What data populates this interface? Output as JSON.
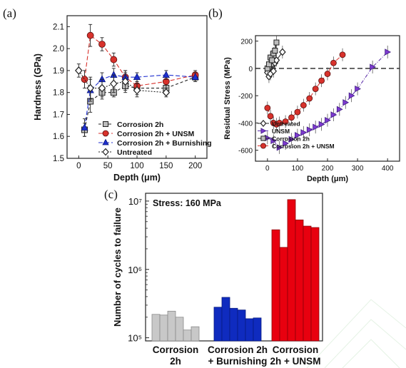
{
  "colors": {
    "red": "#d8322c",
    "blue": "#1f2fcf",
    "violet": "#7e3ad0",
    "gray": "#9a9a9a",
    "dark": "#222222",
    "bar_gray": "#c8c8c8",
    "bar_blue": "#0f2bbf",
    "bar_red": "#e8000f"
  },
  "chart_data": [
    {
      "panel": "(a)",
      "type": "line",
      "xlabel": "Depth (μm)",
      "ylabel": "Hardness (GPa)",
      "xlim": [
        -20,
        220
      ],
      "ylim": [
        1.5,
        2.15
      ],
      "xticks": [
        "0",
        "50",
        "100",
        "150",
        "200"
      ],
      "xtick_values": [
        0,
        50,
        100,
        150,
        200
      ],
      "yticks": [
        "1.5",
        "1.6",
        "1.7",
        "1.8",
        "1.9",
        "2.0",
        "2.1"
      ],
      "ytick_values": [
        1.5,
        1.6,
        1.7,
        1.8,
        1.9,
        2.0,
        2.1
      ],
      "legend_position": "bottom-right",
      "series": [
        {
          "name": "Corrosion 2h",
          "marker": "square",
          "fill": "#bdbdbd",
          "color": "#222222",
          "dash": "4,3",
          "x": [
            10,
            20,
            40,
            60,
            80,
            100,
            150,
            200
          ],
          "y": [
            1.63,
            1.76,
            1.8,
            1.8,
            1.83,
            1.82,
            1.82,
            1.87
          ],
          "err": [
            0.03,
            0.05,
            0.03,
            0.02,
            0.03,
            0.03,
            0.03,
            0.02
          ]
        },
        {
          "name": "Corrosion 2h + UNSM",
          "marker": "circle",
          "fill": "#d8322c",
          "color": "#d8322c",
          "dash": "6,3",
          "x": [
            10,
            20,
            40,
            60,
            80,
            100,
            150,
            200
          ],
          "y": [
            1.86,
            2.06,
            2.02,
            1.95,
            1.87,
            1.83,
            1.85,
            1.88
          ],
          "err": [
            0.04,
            0.05,
            0.03,
            0.03,
            0.03,
            0.03,
            0.03,
            0.02
          ]
        },
        {
          "name": "Corrosion 2h + Burnishing",
          "marker": "triangle",
          "fill": "#1f2fcf",
          "color": "#1f2fcf",
          "dash": "6,3",
          "x": [
            10,
            20,
            40,
            60,
            80,
            100,
            150,
            200
          ],
          "y": [
            1.64,
            1.81,
            1.86,
            1.88,
            1.87,
            1.87,
            1.88,
            1.87
          ],
          "err": [
            0.04,
            0.05,
            0.03,
            0.03,
            0.03,
            0.02,
            0.02,
            0.02
          ]
        },
        {
          "name": "Untreated",
          "marker": "diamond",
          "fill": "#ffffff",
          "color": "#222222",
          "dash": "2,2",
          "x": [
            0,
            20,
            40,
            60,
            80,
            100,
            150
          ],
          "y": [
            1.9,
            1.82,
            1.82,
            1.84,
            1.85,
            1.81,
            1.8
          ],
          "err": [
            0.03,
            0.05,
            0.04,
            0.04,
            0.04,
            0.03,
            0.02
          ]
        }
      ]
    },
    {
      "panel": "(b)",
      "type": "line",
      "xlabel": "Depth (μm)",
      "ylabel": "Residual Stress (MPa)",
      "xlim": [
        -40,
        440
      ],
      "ylim": [
        -680,
        240
      ],
      "xticks": [
        "0",
        "100",
        "200",
        "300",
        "400"
      ],
      "xtick_values": [
        0,
        100,
        200,
        300,
        400
      ],
      "yticks": [
        "200",
        "0",
        "-200",
        "-400",
        "-600"
      ],
      "ytick_values": [
        200,
        0,
        -200,
        -400,
        -600
      ],
      "reference_line": 0,
      "legend_position": "bottom-left",
      "series": [
        {
          "name": "Untreated",
          "marker": "diamond",
          "fill": "#ffffff",
          "color": "#222222",
          "x": [
            0,
            5,
            10,
            15,
            20,
            25,
            30,
            50
          ],
          "y": [
            -30,
            -60,
            -40,
            30,
            -20,
            40,
            60,
            120
          ]
        },
        {
          "name": "UNSM",
          "marker": "triangle-right",
          "fill": "#7e3ad0",
          "color": "#5a2ca8",
          "dash": "5,2,1,2",
          "x": [
            0,
            20,
            40,
            60,
            80,
            100,
            120,
            140,
            160,
            180,
            200,
            220,
            240,
            260,
            280,
            300,
            350,
            400
          ],
          "y": [
            -510,
            -530,
            -580,
            -550,
            -520,
            -490,
            -470,
            -450,
            -430,
            -410,
            -380,
            -340,
            -300,
            -250,
            -200,
            -150,
            10,
            120
          ]
        },
        {
          "name": "Corrosion 2h",
          "marker": "square",
          "fill": "#bdbdbd",
          "color": "#222222",
          "x": [
            0,
            5,
            10,
            15,
            20,
            25,
            30
          ],
          "y": [
            0,
            30,
            80,
            60,
            110,
            130,
            190
          ]
        },
        {
          "name": "Corrosion 2h + UNSM",
          "marker": "circle",
          "fill": "#d8322c",
          "color": "#d8322c",
          "dash": "6,3",
          "x": [
            0,
            10,
            20,
            30,
            40,
            60,
            80,
            100,
            120,
            140,
            160,
            180,
            200,
            220,
            250
          ],
          "y": [
            -290,
            -350,
            -400,
            -410,
            -400,
            -390,
            -360,
            -320,
            -270,
            -220,
            -150,
            -90,
            -40,
            40,
            100
          ]
        }
      ]
    },
    {
      "panel": "(c)",
      "type": "bar",
      "ylabel": "Number of cycles to failure",
      "scale": "log",
      "ylim": [
        90000,
        13000000
      ],
      "yticks": [
        "10⁵",
        "10⁶",
        "10⁷"
      ],
      "ytick_values": [
        100000,
        1000000,
        10000000
      ],
      "annotation": "Stress: 160 MPa",
      "groups": [
        {
          "label_lines": [
            "Corrosion",
            "2h"
          ],
          "color": "#c8c8c8",
          "values": [
            220000,
            215000,
            245000,
            200000,
            130000,
            145000
          ]
        },
        {
          "label_lines": [
            "Corrosion 2h",
            "+ Burnishing"
          ],
          "color": "#0f2bbf",
          "values": [
            280000,
            390000,
            270000,
            255000,
            190000,
            195000
          ]
        },
        {
          "label_lines": [
            "Corrosion",
            "2h + UNSM"
          ],
          "color": "#e8000f",
          "values": [
            3800000,
            2100000,
            10500000,
            5300000,
            4300000,
            4100000
          ]
        }
      ]
    }
  ]
}
